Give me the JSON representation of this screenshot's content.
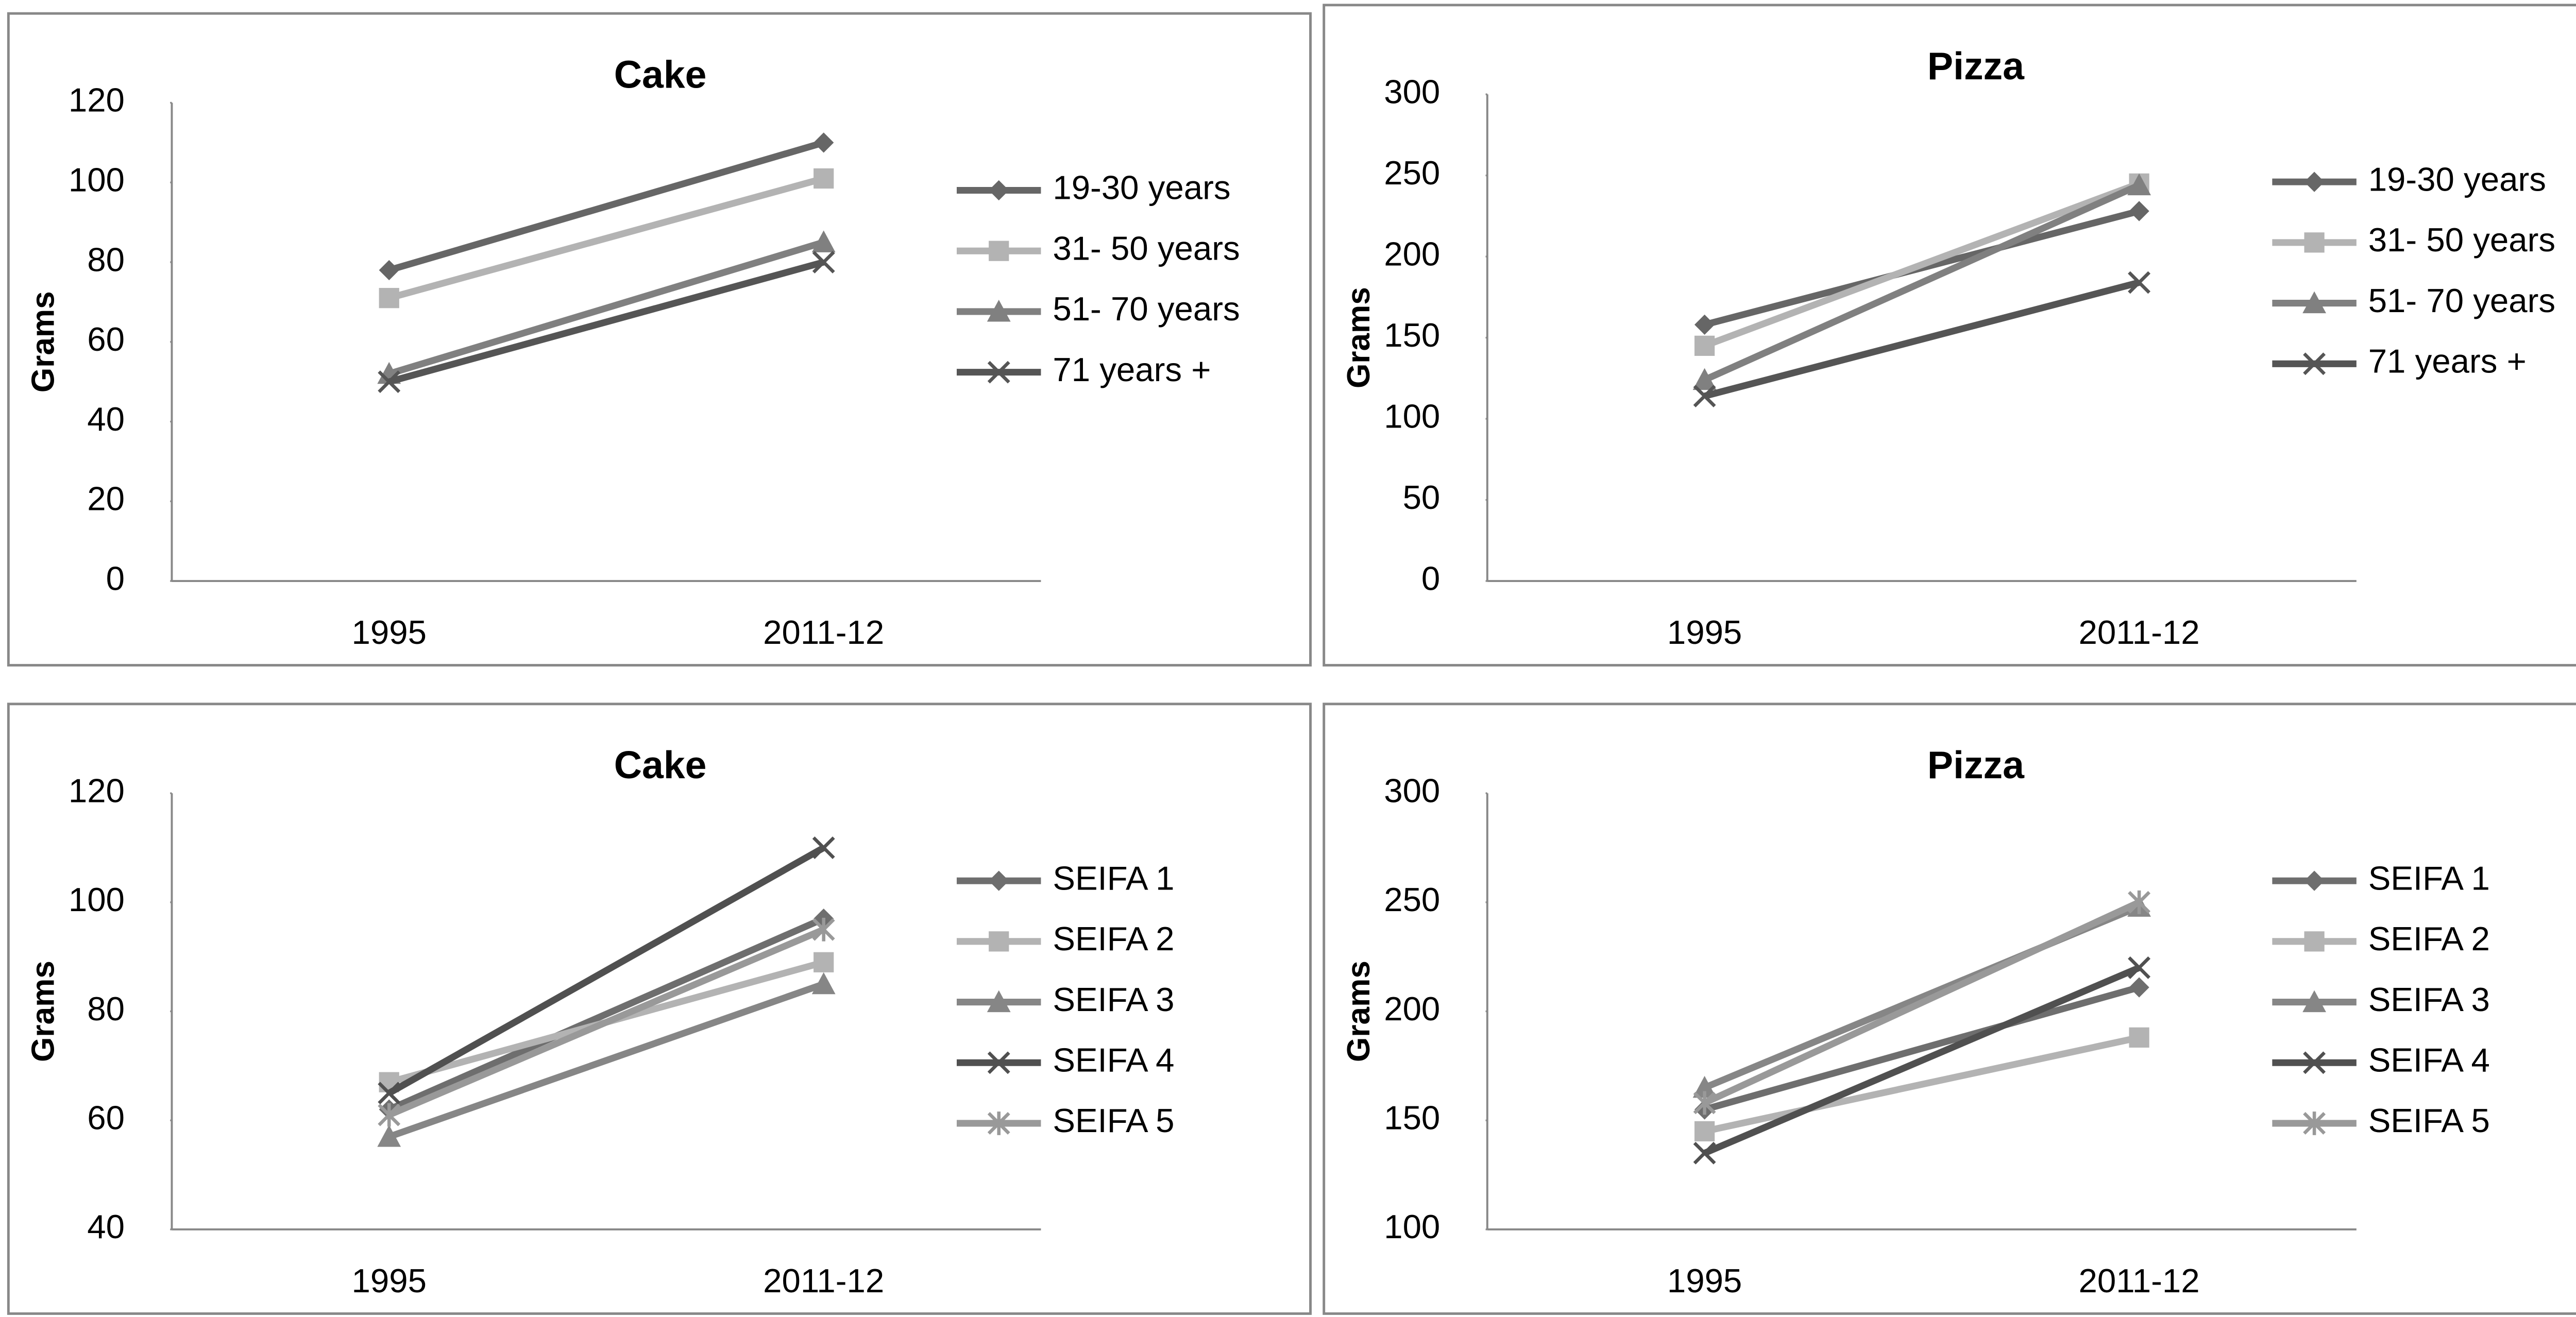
{
  "chart_data": [
    {
      "type": "line",
      "title": "Cake",
      "y_label": "Grams",
      "categories": [
        "1995",
        "2011-12"
      ],
      "ylim": [
        0,
        120
      ],
      "yticks": [
        0,
        20,
        40,
        60,
        80,
        100,
        120
      ],
      "series": [
        {
          "name": "19-30 years",
          "color": "#666666",
          "marker": "diamond",
          "values": [
            78,
            110
          ]
        },
        {
          "name": "31- 50 years",
          "color": "#b3b3b3",
          "marker": "square",
          "values": [
            71,
            101
          ]
        },
        {
          "name": "51- 70 years",
          "color": "#808080",
          "marker": "triangle",
          "values": [
            52,
            85
          ]
        },
        {
          "name": "71 years +",
          "color": "#555555",
          "marker": "x",
          "values": [
            50,
            80
          ]
        }
      ]
    },
    {
      "type": "line",
      "title": "Pizza",
      "y_label": "Grams",
      "categories": [
        "1995",
        "2011-12"
      ],
      "ylim": [
        0,
        300
      ],
      "yticks": [
        0,
        50,
        100,
        150,
        200,
        250,
        300
      ],
      "series": [
        {
          "name": "19-30 years",
          "color": "#666666",
          "marker": "diamond",
          "values": [
            158,
            228
          ]
        },
        {
          "name": "31- 50 years",
          "color": "#b3b3b3",
          "marker": "square",
          "values": [
            145,
            245
          ]
        },
        {
          "name": "51- 70 years",
          "color": "#808080",
          "marker": "triangle",
          "values": [
            124,
            244
          ]
        },
        {
          "name": "71 years +",
          "color": "#555555",
          "marker": "x",
          "values": [
            114,
            184
          ]
        }
      ]
    },
    {
      "type": "line",
      "title": "Cake",
      "y_label": "Grams",
      "categories": [
        "1995",
        "2011-12"
      ],
      "ylim": [
        40,
        120
      ],
      "yticks": [
        40,
        60,
        80,
        100,
        120
      ],
      "series": [
        {
          "name": "SEIFA 1",
          "color": "#6e6e6e",
          "marker": "diamond",
          "values": [
            62,
            97
          ]
        },
        {
          "name": "SEIFA 2",
          "color": "#b3b3b3",
          "marker": "square",
          "values": [
            67,
            89
          ]
        },
        {
          "name": "SEIFA 3",
          "color": "#868686",
          "marker": "triangle",
          "values": [
            57,
            85
          ]
        },
        {
          "name": "SEIFA 4",
          "color": "#505050",
          "marker": "x",
          "values": [
            65,
            110
          ]
        },
        {
          "name": "SEIFA 5",
          "color": "#999999",
          "marker": "star",
          "values": [
            61,
            95
          ]
        }
      ]
    },
    {
      "type": "line",
      "title": "Pizza",
      "y_label": "Grams",
      "categories": [
        "1995",
        "2011-12"
      ],
      "ylim": [
        100,
        300
      ],
      "yticks": [
        100,
        150,
        200,
        250,
        300
      ],
      "series": [
        {
          "name": "SEIFA 1",
          "color": "#6e6e6e",
          "marker": "diamond",
          "values": [
            155,
            211
          ]
        },
        {
          "name": "SEIFA 2",
          "color": "#b3b3b3",
          "marker": "square",
          "values": [
            145,
            188
          ]
        },
        {
          "name": "SEIFA 3",
          "color": "#868686",
          "marker": "triangle",
          "values": [
            165,
            248
          ]
        },
        {
          "name": "SEIFA 4",
          "color": "#505050",
          "marker": "x",
          "values": [
            135,
            220
          ]
        },
        {
          "name": "SEIFA 5",
          "color": "#999999",
          "marker": "star",
          "values": [
            158,
            250
          ]
        }
      ]
    }
  ]
}
